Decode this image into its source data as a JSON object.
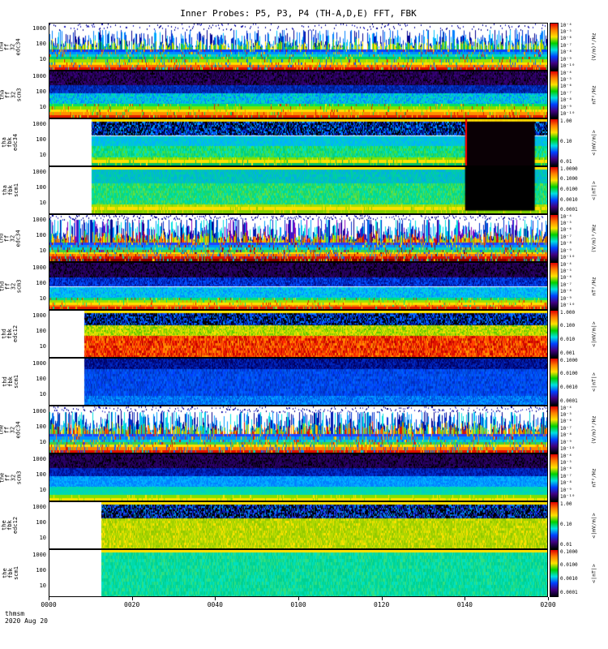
{
  "title": "Inner Probes: P5, P3, P4 (TH-A,D,E) FFT, FBK",
  "footer": {
    "source": "thmsm",
    "date": "2020 Aug 20"
  },
  "x_axis": {
    "ticks": [
      "0000",
      "0020",
      "0040",
      "0100",
      "0120",
      "0140",
      "0200"
    ]
  },
  "colors": {
    "colormap": [
      "#e00000",
      "#ff8000",
      "#ffe000",
      "#00d000",
      "#00e0e0",
      "#0040ff",
      "#400080",
      "#000010"
    ],
    "frame": "#000000",
    "background": "#ffffff"
  },
  "chart_data": {
    "type": "heatmap",
    "description": "Stack of 12 THEMIS FFT/FBK wave-power spectrograms for inner probes P5 (tha), P3 (thd), P4 (the); log frequency axis 10-1000 Hz, time axis 0000-0200 UT on 2020 Aug 20, rainbow colormap (red=high, dark blue=low).",
    "x_ticks": [
      "0000",
      "0020",
      "0040",
      "0100",
      "0120",
      "0140",
      "0200"
    ],
    "y_scale": "log",
    "y_ticks": [
      "1000",
      "100",
      "10"
    ],
    "panels": [
      {
        "probe": "tha",
        "instrument": "ff 32",
        "channel": "edc34",
        "label_lines": [
          "tha",
          "ff",
          "32",
          "edc34"
        ],
        "y_ticks": [
          "1000",
          "100",
          "10"
        ],
        "colorbar": {
          "ticks": [
            "10⁻⁴",
            "10⁻⁵",
            "10⁻⁶",
            "10⁻⁷",
            "10⁻⁸",
            "10⁻⁹",
            "10⁻¹⁰"
          ],
          "unit": "(V/m)²/Hz"
        },
        "render": {
          "start_frac": 0,
          "bands": [
            {
              "type": "dots",
              "h": 0.14,
              "density": 0.3,
              "colors": [
                "#000090",
                "#2020c0"
              ]
            },
            {
              "type": "spikes",
              "h": 0.42,
              "density": 0.8,
              "tall": 0.08,
              "warm": [
                "#00c040",
                "#80d000",
                "#ffe000",
                "#00b0b0"
              ],
              "cool": [
                "#0030d0",
                "#0080ff",
                "#00c0ff",
                "#000090"
              ]
            },
            {
              "type": "stripes",
              "h": 0.44,
              "jitter": 0.25,
              "colors": [
                "#0040ff",
                "#0090ff",
                "#00d0d0",
                "#00d060",
                "#a0e000",
                "#ffe000",
                "#ff7000",
                "#e01000"
              ]
            }
          ]
        }
      },
      {
        "probe": "tha",
        "instrument": "ff 32",
        "channel": "scm3",
        "label_lines": [
          "tha",
          "ff",
          "32",
          "scm3"
        ],
        "y_ticks": [
          "1000",
          "100",
          "10"
        ],
        "colorbar": {
          "ticks": [
            "10⁻⁴",
            "10⁻⁵",
            "10⁻⁶",
            "10⁻⁷",
            "10⁻⁸",
            "10⁻⁹",
            "10⁻¹⁰"
          ],
          "unit": "nT²/Hz"
        },
        "render": {
          "start_frac": 0,
          "bands": [
            {
              "type": "speckle",
              "h": 0.3,
              "cell": 2,
              "colors": [
                "#18003a",
                "#30006a",
                "#000000",
                "#22004f",
                "#3a0080"
              ]
            },
            {
              "type": "speckle",
              "h": 0.18,
              "cell": 2,
              "colors": [
                "#0020a0",
                "#0040e0",
                "#0030c0",
                "#001880"
              ]
            },
            {
              "type": "speckle",
              "h": 0.22,
              "cell": 2,
              "colors": [
                "#0080ff",
                "#00b0ff",
                "#00d0d0",
                "#00e0a0"
              ]
            },
            {
              "type": "stripes",
              "h": 0.3,
              "jitter": 0.2,
              "colors": [
                "#00e060",
                "#80e000",
                "#ffe000",
                "#ff9000",
                "#e02000"
              ]
            }
          ]
        }
      },
      {
        "probe": "tha",
        "instrument": "fbk",
        "channel": "edc34",
        "label_lines": [
          "tha",
          "fbk",
          "edc34"
        ],
        "y_ticks": [
          "1000",
          "100",
          "10"
        ],
        "colorbar": {
          "ticks": [
            "1.00",
            "0.10",
            "0.01"
          ],
          "unit": "<|mV/m|>"
        },
        "render": {
          "start_frac": 0.085,
          "bands": [
            {
              "type": "solid",
              "h": 0.06,
              "colors": [
                "#ffd000",
                "#ffe000"
              ]
            },
            {
              "type": "speckle",
              "h": 0.3,
              "cell": 2,
              "colors": [
                "#000000",
                "#001090",
                "#0040ff",
                "#00a0ff",
                "#000000"
              ]
            },
            {
              "type": "speckle",
              "h": 0.22,
              "cell": 3,
              "colors": [
                "#00c0e0",
                "#00d0c0",
                "#00b0ff"
              ]
            },
            {
              "type": "speckle",
              "h": 0.24,
              "cell": 3,
              "colors": [
                "#00d080",
                "#40e040",
                "#00e0c0"
              ]
            },
            {
              "type": "stripes",
              "h": 0.18,
              "jitter": 0.2,
              "colors": [
                "#80e000",
                "#ffe000",
                "#00c060"
              ]
            }
          ],
          "black_region": {
            "x0": 0.835,
            "x1": 0.975,
            "y0": 0.05,
            "y1": 1.0,
            "color": "#0a0005"
          },
          "redline": {
            "x": 0.835,
            "color": "#ff0000"
          }
        }
      },
      {
        "probe": "tha",
        "instrument": "fbk",
        "channel": "scm1",
        "label_lines": [
          "tha",
          "fbk",
          "scm1"
        ],
        "y_ticks": [
          "1000",
          "100",
          "10"
        ],
        "colorbar": {
          "ticks": [
            "1.0000",
            "0.1000",
            "0.0100",
            "0.0010",
            "0.0001"
          ],
          "unit": "<|nT|>"
        },
        "render": {
          "start_frac": 0.085,
          "bands": [
            {
              "type": "solid",
              "h": 0.05,
              "colors": [
                "#ffe000"
              ]
            },
            {
              "type": "speckle",
              "h": 0.3,
              "cell": 3,
              "colors": [
                "#00c0c0",
                "#00d0a0",
                "#00b0e0"
              ]
            },
            {
              "type": "speckle",
              "h": 0.45,
              "cell": 3,
              "colors": [
                "#00d890",
                "#20d860",
                "#00e0b0",
                "#60e040"
              ]
            },
            {
              "type": "stripes",
              "h": 0.2,
              "jitter": 0.2,
              "colors": [
                "#a0e000",
                "#ffe000",
                "#80d000"
              ]
            }
          ],
          "black_region": {
            "x0": 0.835,
            "x1": 0.975,
            "y0": 0.0,
            "y1": 0.94,
            "color": "#000000"
          }
        }
      },
      {
        "probe": "thd",
        "instrument": "ff 32",
        "channel": "edc34",
        "label_lines": [
          "thd",
          "ff",
          "32",
          "edc34"
        ],
        "y_ticks": [
          "1000",
          "100",
          "10"
        ],
        "colorbar": {
          "ticks": [
            "10⁻⁴",
            "10⁻⁵",
            "10⁻⁶",
            "10⁻⁷",
            "10⁻⁸",
            "10⁻⁹",
            "10⁻¹⁰"
          ],
          "unit": "(V/m)²/Hz"
        },
        "render": {
          "start_frac": 0,
          "bands": [
            {
              "type": "dots",
              "h": 0.1,
              "density": 0.5,
              "colors": [
                "#000090",
                "#4040d0"
              ]
            },
            {
              "type": "spikes",
              "h": 0.5,
              "density": 0.97,
              "tall": 0.15,
              "warm": [
                "#e01000",
                "#ff8000",
                "#ffe000",
                "#80d000"
              ],
              "cool": [
                "#0030d0",
                "#00a0ff",
                "#00e0e0",
                "#000090",
                "#8000c0"
              ]
            },
            {
              "type": "stripes",
              "h": 0.4,
              "jitter": 0.3,
              "colors": [
                "#2040ff",
                "#0090ff",
                "#00d0d0",
                "#40d040",
                "#ffe000",
                "#ff8000",
                "#e01000",
                "#900000"
              ]
            }
          ]
        }
      },
      {
        "probe": "thd",
        "instrument": "ff 32",
        "channel": "scm3",
        "label_lines": [
          "thd",
          "ff",
          "32",
          "scm3"
        ],
        "y_ticks": [
          "1000",
          "100",
          "10"
        ],
        "colorbar": {
          "ticks": [
            "10⁻⁴",
            "10⁻⁵",
            "10⁻⁶",
            "10⁻⁷",
            "10⁻⁸",
            "10⁻⁹",
            "10⁻¹⁰"
          ],
          "unit": "nT²/Hz"
        },
        "render": {
          "start_frac": 0,
          "bands": [
            {
              "type": "speckle",
              "h": 0.32,
              "cell": 2,
              "colors": [
                "#1a0040",
                "#2e0070",
                "#000000",
                "#240058"
              ]
            },
            {
              "type": "speckle",
              "h": 0.2,
              "cell": 2,
              "colors": [
                "#001090",
                "#0030d0",
                "#0050ff"
              ]
            },
            {
              "type": "speckle",
              "h": 0.24,
              "cell": 2,
              "colors": [
                "#0090ff",
                "#00c0ff",
                "#00d0d0"
              ]
            },
            {
              "type": "stripes",
              "h": 0.24,
              "jitter": 0.2,
              "colors": [
                "#00e080",
                "#a0e000",
                "#ffe000",
                "#ff8000",
                "#e02000"
              ]
            }
          ]
        }
      },
      {
        "probe": "thd",
        "instrument": "fbk",
        "channel": "edc12",
        "label_lines": [
          "thd",
          "fbk",
          "edc12"
        ],
        "y_ticks": [
          "1000",
          "100",
          "10"
        ],
        "colorbar": {
          "ticks": [
            "1.000",
            "0.100",
            "0.010",
            "0.001"
          ],
          "unit": "<|mV/m|>"
        },
        "render": {
          "start_frac": 0.07,
          "bands": [
            {
              "type": "solid",
              "h": 0.05,
              "colors": [
                "#ffe000"
              ]
            },
            {
              "type": "speckle",
              "h": 0.27,
              "cell": 2,
              "colors": [
                "#000000",
                "#001090",
                "#0040ff",
                "#0080ff",
                "#000000"
              ]
            },
            {
              "type": "speckle",
              "h": 0.23,
              "cell": 2,
              "colors": [
                "#a0d800",
                "#ffe000",
                "#60c800",
                "#d0e000"
              ]
            },
            {
              "type": "speckle",
              "h": 0.45,
              "cell": 3,
              "colors": [
                "#e01000",
                "#ff3000",
                "#ff6000",
                "#c00000",
                "#ff9000"
              ]
            }
          ]
        }
      },
      {
        "probe": "thd",
        "instrument": "fbk",
        "channel": "scm1",
        "label_lines": [
          "thd",
          "fbk",
          "scm1"
        ],
        "y_ticks": [
          "1000",
          "100",
          "10"
        ],
        "colorbar": {
          "ticks": [
            "0.1000",
            "0.0100",
            "0.0010",
            "0.0001"
          ],
          "unit": "<|nT|>"
        },
        "render": {
          "start_frac": 0.07,
          "bands": [
            {
              "type": "speckle",
              "h": 0.22,
              "cell": 2,
              "colors": [
                "#001090",
                "#0028c0",
                "#000060"
              ]
            },
            {
              "type": "speckle",
              "h": 0.58,
              "cell": 3,
              "colors": [
                "#0040ff",
                "#0060ff",
                "#0050e0",
                "#0030c0"
              ]
            },
            {
              "type": "speckle",
              "h": 0.2,
              "cell": 2,
              "colors": [
                "#0070ff",
                "#00a0ff",
                "#0050e0"
              ]
            }
          ]
        }
      },
      {
        "probe": "the",
        "instrument": "ff 32",
        "channel": "edc34",
        "label_lines": [
          "the",
          "ff",
          "32",
          "edc34"
        ],
        "y_ticks": [
          "1000",
          "100",
          "10"
        ],
        "colorbar": {
          "ticks": [
            "10⁻⁴",
            "10⁻⁵",
            "10⁻⁶",
            "10⁻⁷",
            "10⁻⁸",
            "10⁻⁹",
            "10⁻¹⁰"
          ],
          "unit": "(V/m)²/Hz"
        },
        "render": {
          "start_frac": 0,
          "bands": [
            {
              "type": "dots",
              "h": 0.12,
              "density": 0.45,
              "colors": [
                "#000090",
                "#4040d0"
              ]
            },
            {
              "type": "spikes",
              "h": 0.48,
              "density": 0.93,
              "tall": 0.12,
              "warm": [
                "#e01000",
                "#ff8000",
                "#ffe000",
                "#80d000",
                "#00c0b0"
              ],
              "cool": [
                "#0030d0",
                "#00a0ff",
                "#00e0e0",
                "#000090"
              ]
            },
            {
              "type": "stripes",
              "h": 0.4,
              "jitter": 0.3,
              "colors": [
                "#2040ff",
                "#0090ff",
                "#00d0d0",
                "#40d040",
                "#ffe000",
                "#ff8000",
                "#e01000"
              ]
            }
          ]
        }
      },
      {
        "probe": "the",
        "instrument": "ff 32",
        "channel": "scm3",
        "label_lines": [
          "the",
          "ff",
          "32",
          "scm3"
        ],
        "y_ticks": [
          "1000",
          "100",
          "10"
        ],
        "colorbar": {
          "ticks": [
            "10⁻⁴",
            "10⁻⁵",
            "10⁻⁶",
            "10⁻⁷",
            "10⁻⁸",
            "10⁻⁹",
            "10⁻¹⁰"
          ],
          "unit": "nT²/Hz"
        },
        "render": {
          "start_frac": 0,
          "bands": [
            {
              "type": "speckle",
              "h": 0.3,
              "cell": 2,
              "colors": [
                "#1a0040",
                "#2e0070",
                "#000000",
                "#26005c"
              ]
            },
            {
              "type": "speckle",
              "h": 0.18,
              "cell": 2,
              "colors": [
                "#001090",
                "#0030d0"
              ]
            },
            {
              "type": "speckle",
              "h": 0.22,
              "cell": 2,
              "colors": [
                "#0080ff",
                "#00b0ff"
              ]
            },
            {
              "type": "speckle",
              "h": 0.18,
              "cell": 2,
              "colors": [
                "#00d0c0",
                "#00e0a0"
              ]
            },
            {
              "type": "stripes",
              "h": 0.12,
              "jitter": 0.2,
              "colors": [
                "#80e000",
                "#ffe000"
              ]
            }
          ]
        }
      },
      {
        "probe": "the",
        "instrument": "fbk",
        "channel": "edc12",
        "label_lines": [
          "the",
          "fbk",
          "edc12"
        ],
        "y_ticks": [
          "1000",
          "100",
          "10"
        ],
        "colorbar": {
          "ticks": [
            "1.00",
            "0.10",
            "0.01"
          ],
          "unit": "<|mV/m|>"
        },
        "render": {
          "start_frac": 0.105,
          "bands": [
            {
              "type": "solid",
              "h": 0.05,
              "colors": [
                "#ffe000"
              ]
            },
            {
              "type": "speckle",
              "h": 0.3,
              "cell": 2,
              "colors": [
                "#000000",
                "#001090",
                "#2040ff",
                "#0090e0",
                "#000000"
              ]
            },
            {
              "type": "speckle",
              "h": 0.65,
              "cell": 3,
              "colors": [
                "#b0d800",
                "#c8e000",
                "#90c800",
                "#ffe000",
                "#a0d000"
              ]
            }
          ]
        }
      },
      {
        "probe": "the",
        "instrument": "fbk",
        "channel": "scm1",
        "label_lines": [
          "the",
          "fbk",
          "scm1"
        ],
        "y_ticks": [
          "1000",
          "100",
          "10"
        ],
        "colorbar": {
          "ticks": [
            "0.1000",
            "0.0100",
            "0.0010",
            "0.0001"
          ],
          "unit": "<|nT|>"
        },
        "render": {
          "start_frac": 0.105,
          "bands": [
            {
              "type": "solid",
              "h": 0.05,
              "colors": [
                "#ffe000"
              ]
            },
            {
              "type": "speckle",
              "h": 0.95,
              "cell": 4,
              "colors": [
                "#00d8a0",
                "#00e0c0",
                "#30e080",
                "#00d090"
              ]
            }
          ]
        }
      }
    ]
  }
}
